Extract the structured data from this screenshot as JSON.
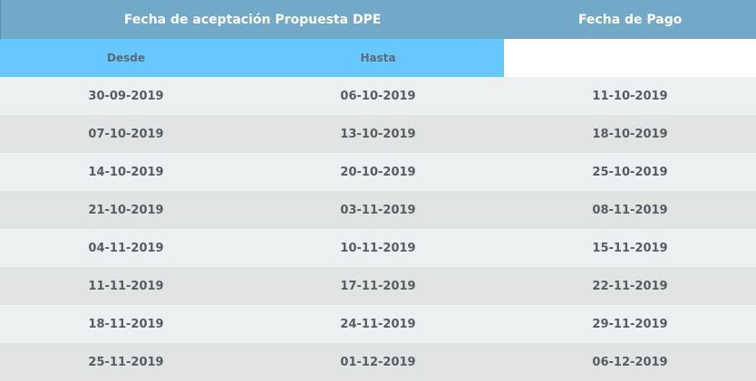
{
  "header": {
    "acceptance_title": "Fecha de aceptación Propuesta DPE",
    "payment_title": "Fecha de Pago",
    "from_label": "Desde",
    "to_label": "Hasta"
  },
  "rows": [
    {
      "desde": "30-09-2019",
      "hasta": "06-10-2019",
      "pago": "11-10-2019"
    },
    {
      "desde": "07-10-2019",
      "hasta": "13-10-2019",
      "pago": "18-10-2019"
    },
    {
      "desde": "14-10-2019",
      "hasta": "20-10-2019",
      "pago": "25-10-2019"
    },
    {
      "desde": "21-10-2019",
      "hasta": "03-11-2019",
      "pago": "08-11-2019"
    },
    {
      "desde": "04-11-2019",
      "hasta": "10-11-2019",
      "pago": "15-11-2019"
    },
    {
      "desde": "11-11-2019",
      "hasta": "17-11-2019",
      "pago": "22-11-2019"
    },
    {
      "desde": "18-11-2019",
      "hasta": "24-11-2019",
      "pago": "29-11-2019"
    },
    {
      "desde": "25-11-2019",
      "hasta": "01-12-2019",
      "pago": "06-12-2019"
    }
  ],
  "colors": {
    "header_bg": "#73a9c8",
    "subheader_bg": "#66c8ff",
    "row_light": "#edf0f1",
    "row_dark": "#e2e4e3",
    "text": "#555d63"
  }
}
